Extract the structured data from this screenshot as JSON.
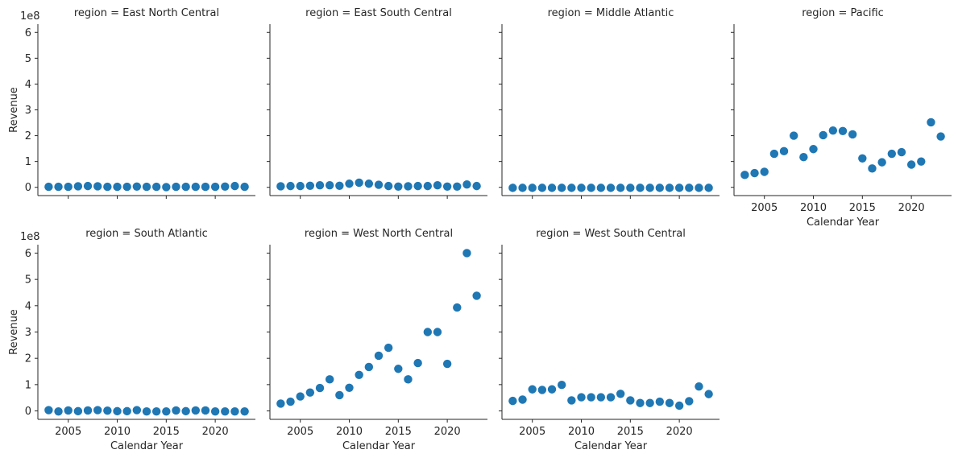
{
  "chart_data": {
    "type": "scatter",
    "facet_var": "region",
    "xlabel": "Calendar Year",
    "ylabel": "Revenue",
    "y_offset_label": "1e8",
    "xlim": [
      2001.9,
      2024.1
    ],
    "ylim": [
      -0.32,
      6.32
    ],
    "x_ticks": [
      2005,
      2010,
      2015,
      2020
    ],
    "y_ticks": [
      0,
      1,
      2,
      3,
      4,
      5,
      6
    ],
    "x": [
      2003,
      2004,
      2005,
      2006,
      2007,
      2008,
      2009,
      2010,
      2011,
      2012,
      2013,
      2014,
      2015,
      2016,
      2017,
      2018,
      2019,
      2020,
      2021,
      2022,
      2023
    ],
    "panels": [
      {
        "title": "region = East North Central",
        "values": [
          0.02,
          0.02,
          0.02,
          0.04,
          0.05,
          0.04,
          0.02,
          0.02,
          0.02,
          0.03,
          0.02,
          0.02,
          0.01,
          0.02,
          0.02,
          0.02,
          0.02,
          0.02,
          0.03,
          0.05,
          0.02
        ]
      },
      {
        "title": "region = East South Central",
        "values": [
          0.04,
          0.05,
          0.05,
          0.06,
          0.08,
          0.08,
          0.06,
          0.14,
          0.18,
          0.14,
          0.1,
          0.05,
          0.03,
          0.04,
          0.05,
          0.05,
          0.08,
          0.03,
          0.03,
          0.11,
          0.05
        ]
      },
      {
        "title": "region = Middle Atlantic",
        "values": [
          -0.02,
          -0.02,
          -0.02,
          -0.02,
          -0.02,
          -0.02,
          -0.02,
          -0.02,
          -0.02,
          -0.02,
          -0.02,
          -0.02,
          -0.02,
          -0.02,
          -0.02,
          -0.02,
          -0.02,
          -0.02,
          -0.02,
          -0.02,
          -0.02
        ]
      },
      {
        "title": "region = Pacific",
        "values": [
          0.48,
          0.55,
          0.6,
          1.3,
          1.4,
          2.0,
          1.17,
          1.48,
          2.02,
          2.2,
          2.18,
          2.05,
          1.12,
          0.73,
          0.97,
          1.3,
          1.36,
          0.88,
          1.0,
          2.52,
          1.97
        ]
      },
      {
        "title": "region = South Atlantic",
        "values": [
          0.03,
          -0.02,
          0.02,
          -0.01,
          0.02,
          0.03,
          0.01,
          -0.01,
          -0.01,
          0.03,
          -0.02,
          -0.02,
          -0.02,
          0.02,
          -0.01,
          0.02,
          0.02,
          -0.02,
          -0.02,
          -0.02,
          -0.02
        ]
      },
      {
        "title": "region = West North Central",
        "values": [
          0.28,
          0.35,
          0.55,
          0.7,
          0.87,
          1.2,
          0.6,
          0.88,
          1.37,
          1.67,
          2.1,
          2.4,
          1.6,
          1.2,
          1.82,
          3.0,
          3.0,
          1.79,
          3.93,
          6.0,
          4.38
        ]
      },
      {
        "title": "region = West South Central",
        "values": [
          0.38,
          0.43,
          0.82,
          0.8,
          0.82,
          0.99,
          0.4,
          0.52,
          0.52,
          0.52,
          0.52,
          0.65,
          0.4,
          0.3,
          0.3,
          0.35,
          0.3,
          0.2,
          0.37,
          0.93,
          0.64
        ]
      }
    ]
  }
}
